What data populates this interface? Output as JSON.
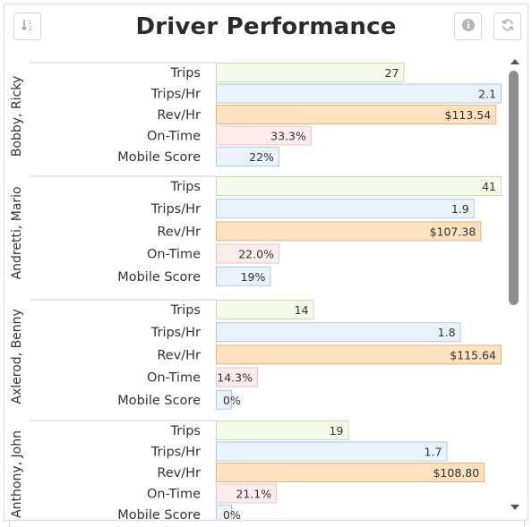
{
  "header": {
    "title": "Driver Performance",
    "sort_icon": "sort-descending-icon",
    "info_icon": "info-icon",
    "refresh_icon": "refresh-icon"
  },
  "chart_data": {
    "type": "bar",
    "orientation": "horizontal",
    "title": "Driver Performance",
    "metrics": [
      "Trips",
      "Trips/Hr",
      "Rev/Hr",
      "On-Time",
      "Mobile Score"
    ],
    "groups": [
      {
        "name": "Bobby, Ricky",
        "bars": [
          {
            "metric": "Trips",
            "value": 27,
            "label": "27"
          },
          {
            "metric": "Trips/Hr",
            "value": 2.1,
            "label": "2.1"
          },
          {
            "metric": "Rev/Hr",
            "value": 113.54,
            "label": "$113.54"
          },
          {
            "metric": "On-Time",
            "value": 33.3,
            "label": "33.3%"
          },
          {
            "metric": "Mobile Score",
            "value": 22,
            "label": "22%"
          }
        ]
      },
      {
        "name": "Andretti, Mario",
        "bars": [
          {
            "metric": "Trips",
            "value": 41,
            "label": "41"
          },
          {
            "metric": "Trips/Hr",
            "value": 1.9,
            "label": "1.9"
          },
          {
            "metric": "Rev/Hr",
            "value": 107.38,
            "label": "$107.38"
          },
          {
            "metric": "On-Time",
            "value": 22.0,
            "label": "22.0%"
          },
          {
            "metric": "Mobile Score",
            "value": 19,
            "label": "19%"
          }
        ]
      },
      {
        "name": "Axlerod, Benny",
        "bars": [
          {
            "metric": "Trips",
            "value": 14,
            "label": "14"
          },
          {
            "metric": "Trips/Hr",
            "value": 1.8,
            "label": "1.8"
          },
          {
            "metric": "Rev/Hr",
            "value": 115.64,
            "label": "$115.64"
          },
          {
            "metric": "On-Time",
            "value": 14.3,
            "label": "14.3%"
          },
          {
            "metric": "Mobile Score",
            "value": 0,
            "label": "0%"
          }
        ]
      },
      {
        "name": "Anthony, John",
        "bars": [
          {
            "metric": "Trips",
            "value": 19,
            "label": "19"
          },
          {
            "metric": "Trips/Hr",
            "value": 1.7,
            "label": "1.7"
          },
          {
            "metric": "Rev/Hr",
            "value": 108.8,
            "label": "$108.80"
          },
          {
            "metric": "On-Time",
            "value": 21.1,
            "label": "21.1%"
          },
          {
            "metric": "Mobile Score",
            "value": 0,
            "label": "0%"
          }
        ]
      }
    ],
    "scales": {
      "Trips": [
        0,
        41
      ],
      "Trips/Hr": [
        0,
        2.1
      ],
      "Rev/Hr": [
        0,
        115.64
      ],
      "On-Time": [
        0,
        100
      ],
      "Mobile Score": [
        0,
        100
      ]
    },
    "colors": {
      "Trips": {
        "fill": "#f4fbea",
        "stroke": "#c8e2ad"
      },
      "Trips/Hr": {
        "fill": "#eaf3fd",
        "stroke": "#aecbe6"
      },
      "Rev/Hr": {
        "fill": "#fde0bd",
        "stroke": "#e9b47c"
      },
      "On-Time": {
        "fill": "#fdecec",
        "stroke": "#efc1c1"
      },
      "Mobile Score": {
        "fill": "#eaf3fd",
        "stroke": "#aecbe6"
      }
    },
    "grid": false,
    "legend": "none"
  }
}
